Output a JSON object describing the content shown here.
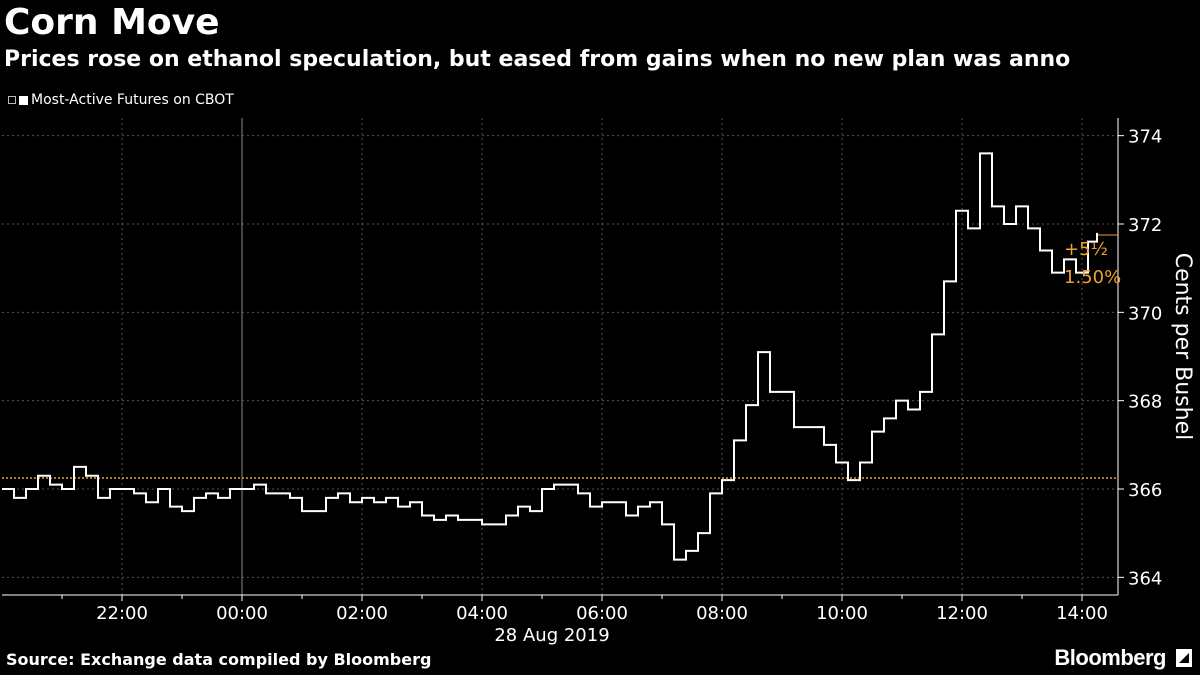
{
  "header": {
    "title": "Corn Move",
    "subtitle": "Prices rose on ethanol speculation, but eased from gains when no new plan was anno"
  },
  "legend": {
    "label": "Most-Active Futures on CBOT"
  },
  "footer": {
    "source": "Source: Exchange data compiled by Bloomberg",
    "brand": "Bloomberg"
  },
  "colors": {
    "background": "#000000",
    "line": "#ffffff",
    "reference": "#f0a030",
    "grid": "#555555"
  },
  "chart_data": {
    "type": "line",
    "ylabel": "Cents per Bushel",
    "xlabel": "28 Aug 2019",
    "ylim": [
      363.6,
      374.4
    ],
    "xlim": [
      20.0,
      15.0
    ],
    "yticks": [
      364,
      366,
      368,
      370,
      372,
      374
    ],
    "xticks": [
      {
        "h": 22,
        "label": "22:00"
      },
      {
        "h": 24,
        "label": "00:00"
      },
      {
        "h": 26,
        "label": "02:00"
      },
      {
        "h": 28,
        "label": "04:00"
      },
      {
        "h": 30,
        "label": "06:00"
      },
      {
        "h": 32,
        "label": "08:00"
      },
      {
        "h": 34,
        "label": "10:00"
      },
      {
        "h": 36,
        "label": "12:00"
      },
      {
        "h": 38,
        "label": "14:00"
      }
    ],
    "reference_level": 366.25,
    "last_level": 371.75,
    "annotation": {
      "change": "+5½",
      "pct": "1.50%"
    },
    "series": [
      {
        "x": [
          20.0,
          20.2,
          20.4,
          20.6,
          20.8,
          21.0,
          21.2,
          21.4,
          21.6,
          21.8,
          22.0,
          22.2,
          22.4,
          22.6,
          22.8,
          23.0,
          23.2,
          23.4,
          23.6,
          23.8,
          24.0,
          24.2,
          24.4,
          24.6,
          24.8,
          25.0,
          25.2,
          25.4,
          25.6,
          25.8,
          26.0,
          26.2,
          26.4,
          26.6,
          26.8,
          27.0,
          27.2,
          27.4,
          27.6,
          27.8,
          28.0,
          28.2,
          28.4,
          28.6,
          28.8,
          29.0,
          29.2,
          29.4,
          29.6,
          29.8,
          30.0,
          30.2,
          30.4,
          30.6,
          30.8,
          31.0,
          31.2,
          31.4,
          31.6,
          31.8,
          32.0,
          32.2,
          32.4,
          32.6,
          32.8,
          33.2,
          33.5,
          33.7,
          33.9,
          34.1,
          34.3,
          34.5,
          34.7,
          34.9,
          35.1,
          35.3,
          35.5,
          35.7,
          35.9,
          36.1,
          36.3,
          36.5,
          36.7,
          36.9,
          37.1,
          37.3,
          37.5,
          37.7,
          37.9,
          38.1,
          38.25
        ],
        "values": [
          366.0,
          365.8,
          366.0,
          366.3,
          366.1,
          366.0,
          366.5,
          366.3,
          365.8,
          366.0,
          366.0,
          365.9,
          365.7,
          366.0,
          365.6,
          365.5,
          365.8,
          365.9,
          365.8,
          366.0,
          366.0,
          366.1,
          365.9,
          365.9,
          365.8,
          365.5,
          365.5,
          365.8,
          365.9,
          365.7,
          365.8,
          365.7,
          365.8,
          365.6,
          365.7,
          365.4,
          365.3,
          365.4,
          365.3,
          365.3,
          365.2,
          365.2,
          365.4,
          365.6,
          365.5,
          366.0,
          366.1,
          366.1,
          365.9,
          365.6,
          365.7,
          365.7,
          365.4,
          365.6,
          365.7,
          365.2,
          364.4,
          364.6,
          365.0,
          365.9,
          366.2,
          367.1,
          367.9,
          369.1,
          368.2,
          367.4,
          367.4,
          367.0,
          366.6,
          366.2,
          366.6,
          367.3,
          367.6,
          368.0,
          367.8,
          368.2,
          369.5,
          370.7,
          372.3,
          371.9,
          373.6,
          372.4,
          372.0,
          372.4,
          371.9,
          371.4,
          370.9,
          371.2,
          370.9,
          371.6,
          371.8
        ]
      }
    ]
  }
}
